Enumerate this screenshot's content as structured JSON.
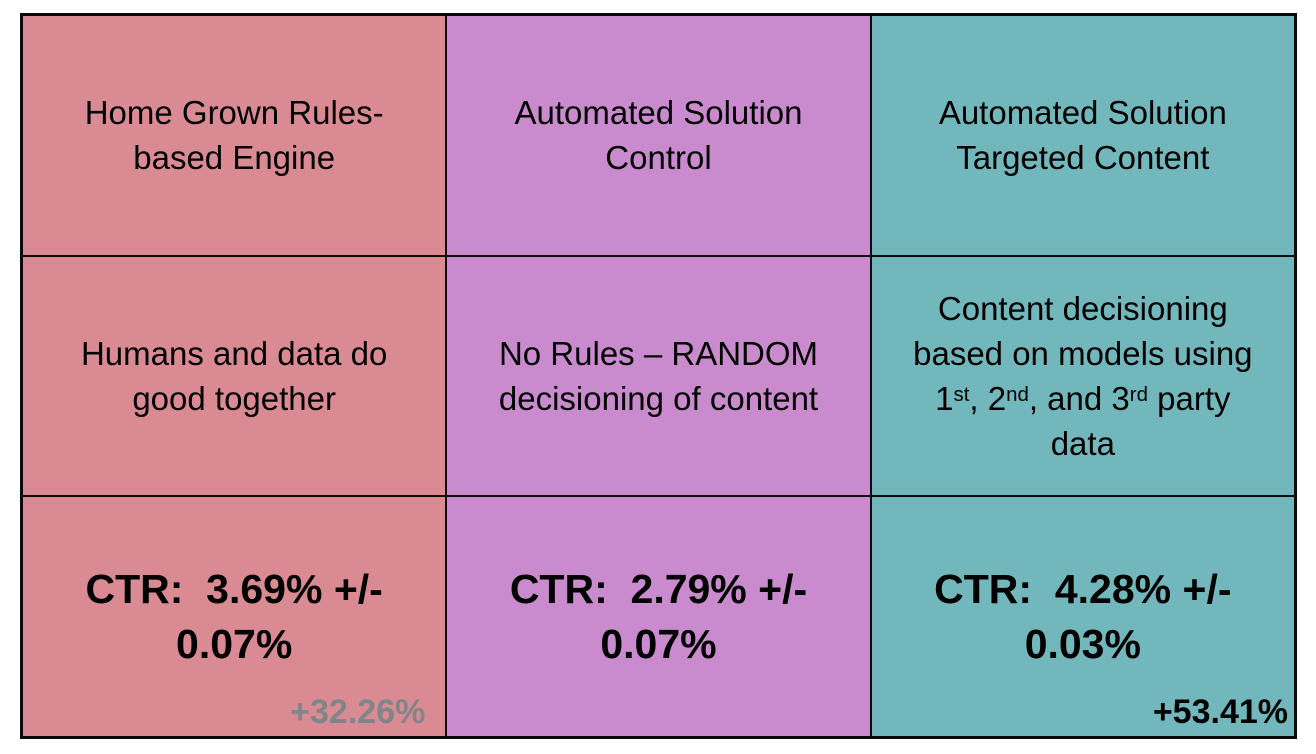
{
  "page": {
    "background": "#ffffff",
    "border_color": "#000000"
  },
  "table": {
    "columns": [
      {
        "name": "home-grown-rules-engine",
        "color": "#da8a93",
        "header": "Home Grown Rules-\nbased Engine",
        "description": "Humans and data do\ngood together",
        "ctr": "CTR:  3.69% +/-\n0.07%",
        "lift": "+32.26%",
        "lift_color": "#7f8588"
      },
      {
        "name": "automated-solution-control",
        "color": "#c98bce",
        "header": "Automated Solution\nControl",
        "description": "No Rules – RANDOM\ndecisioning of content",
        "ctr": "CTR:  2.79% +/-\n0.07%",
        "lift": "",
        "lift_color": "#000000"
      },
      {
        "name": "automated-solution-targeted-content",
        "color": "#72b7bc",
        "header": "Automated Solution\nTargeted Content",
        "description_rich": [
          {
            "t": "Content decisioning\nbased on models using\n1"
          },
          {
            "sup": "st"
          },
          {
            "t": ", 2"
          },
          {
            "sup": "nd"
          },
          {
            "t": ", and 3"
          },
          {
            "sup": "rd"
          },
          {
            "t": " party\ndata"
          }
        ],
        "ctr": "CTR:  4.28% +/-\n0.03%",
        "lift": "+53.41%",
        "lift_color": "#000000"
      }
    ]
  }
}
